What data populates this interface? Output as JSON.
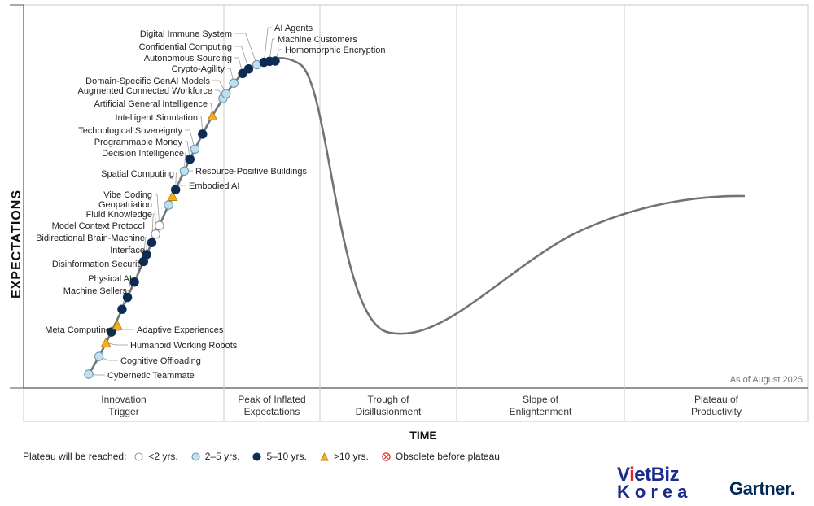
{
  "chart_data": {
    "type": "hype-cycle",
    "ylabel": "EXPECTATIONS",
    "xlabel": "TIME",
    "as_of": "As of August 2025",
    "phases": [
      [
        "Innovation",
        "Trigger"
      ],
      [
        "Peak of Inflated",
        "Expectations"
      ],
      [
        "Trough of",
        "Disillusionment"
      ],
      [
        "Slope of",
        "Enlightenment"
      ],
      [
        "Plateau of",
        "Productivity"
      ]
    ],
    "legend_title": "Plateau will be reached:",
    "legend": [
      {
        "key": "lt2",
        "label": "<2 yrs.",
        "color": "#ffffff"
      },
      {
        "key": "2to5",
        "label": "2–5 yrs.",
        "color": "#bfe0f0"
      },
      {
        "key": "5to10",
        "label": "5–10 yrs.",
        "color": "#0d2c54"
      },
      {
        "key": "gt10",
        "label": ">10 yrs.",
        "color": "#f2b01e"
      },
      {
        "key": "obs",
        "label": "Obsolete before plateau",
        "color": "#e0262b"
      }
    ],
    "points": [
      {
        "name": "Cybernetic Teammate",
        "t": 0.0,
        "cat": "2to5"
      },
      {
        "name": "Cognitive Offloading",
        "t": 0.055,
        "cat": "2to5"
      },
      {
        "name": "Humanoid Working Robots",
        "t": 0.095,
        "cat": "gt10"
      },
      {
        "name": "Adaptive Experiences",
        "t": 0.128,
        "cat": "5to10"
      },
      {
        "name": "Meta Computing",
        "t": 0.1,
        "cat": "gt10"
      },
      {
        "name": "Machine Sellers",
        "t": 0.195,
        "cat": "5to10"
      },
      {
        "name": "Physical AI",
        "t": 0.23,
        "cat": "5to10"
      },
      {
        "name": "Disinformation Security",
        "t": 0.275,
        "cat": "5to10"
      },
      {
        "name": "Bidirectional Brain-Machine Interface",
        "t": 0.335,
        "cat": "5to10"
      },
      {
        "name": "Model Context Protocol",
        "t": 0.355,
        "cat": "5to10"
      },
      {
        "name": "Fluid Knowledge",
        "t": 0.39,
        "cat": "5to10"
      },
      {
        "name": "Geopatriation",
        "t": 0.415,
        "cat": "lt2"
      },
      {
        "name": "Vibe Coding",
        "t": 0.44,
        "cat": "lt2"
      },
      {
        "name": "Embodied AI",
        "t": 0.5,
        "cat": "2to5"
      },
      {
        "name": "Resource-Positive Buildings",
        "t": 0.525,
        "cat": "gt10"
      },
      {
        "name": "Spatial Computing",
        "t": 0.545,
        "cat": "5to10"
      },
      {
        "name": "Decision Intelligence",
        "t": 0.6,
        "cat": "2to5"
      },
      {
        "name": "Programmable Money",
        "t": 0.635,
        "cat": "5to10"
      },
      {
        "name": "Technological Sovereignty",
        "t": 0.665,
        "cat": "2to5"
      },
      {
        "name": "Intelligent Simulation",
        "t": 0.71,
        "cat": "5to10"
      },
      {
        "name": "Artificial General Intelligence",
        "t": 0.765,
        "cat": "gt10"
      },
      {
        "name": "Augmented Connected Workforce",
        "t": 0.82,
        "cat": "2to5"
      },
      {
        "name": "Domain-Specific GenAI Models",
        "t": 0.835,
        "cat": "2to5"
      },
      {
        "name": "Crypto-Agility",
        "t": 0.87,
        "cat": "2to5"
      },
      {
        "name": "Autonomous Sourcing",
        "t": 0.905,
        "cat": "5to10"
      },
      {
        "name": "Confidential Computing",
        "t": 0.925,
        "cat": "5to10"
      },
      {
        "name": "Digital Immune System",
        "t": 0.95,
        "cat": "2to5"
      },
      {
        "name": "AI Agents",
        "t": 0.97,
        "cat": "5to10"
      },
      {
        "name": "Machine Customers",
        "t": 0.985,
        "cat": "5to10"
      },
      {
        "name": "Homomorphic Encryption",
        "t": 1.0,
        "cat": "5to10"
      }
    ]
  },
  "brand": {
    "vietbiz_line1_a": "V",
    "vietbiz_line1_red": "i",
    "vietbiz_line1_b": "etBiz",
    "vietbiz_line2": "Korea",
    "gartner": "Gartner."
  }
}
